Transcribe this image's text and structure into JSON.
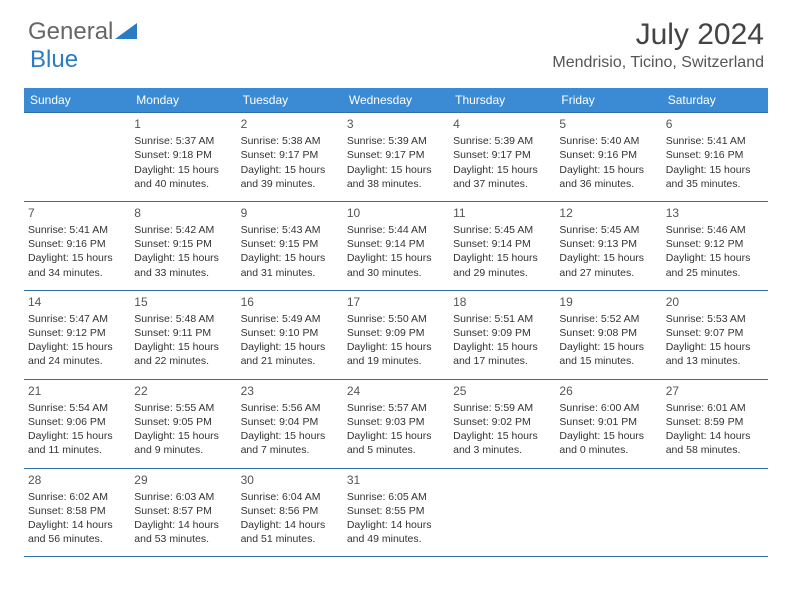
{
  "header": {
    "logo_text_1": "General",
    "logo_text_2": "Blue",
    "title": "July 2024",
    "location": "Mendrisio, Ticino, Switzerland"
  },
  "colors": {
    "header_bg": "#3b8bd4",
    "header_text": "#ffffff",
    "cell_border": "#2f6fa8",
    "logo_blue": "#2b7cc4",
    "text": "#333333"
  },
  "weekdays": [
    "Sunday",
    "Monday",
    "Tuesday",
    "Wednesday",
    "Thursday",
    "Friday",
    "Saturday"
  ],
  "start_day_index": 1,
  "days": [
    {
      "n": 1,
      "sunrise": "5:37 AM",
      "sunset": "9:18 PM",
      "daylight": "15 hours and 40 minutes."
    },
    {
      "n": 2,
      "sunrise": "5:38 AM",
      "sunset": "9:17 PM",
      "daylight": "15 hours and 39 minutes."
    },
    {
      "n": 3,
      "sunrise": "5:39 AM",
      "sunset": "9:17 PM",
      "daylight": "15 hours and 38 minutes."
    },
    {
      "n": 4,
      "sunrise": "5:39 AM",
      "sunset": "9:17 PM",
      "daylight": "15 hours and 37 minutes."
    },
    {
      "n": 5,
      "sunrise": "5:40 AM",
      "sunset": "9:16 PM",
      "daylight": "15 hours and 36 minutes."
    },
    {
      "n": 6,
      "sunrise": "5:41 AM",
      "sunset": "9:16 PM",
      "daylight": "15 hours and 35 minutes."
    },
    {
      "n": 7,
      "sunrise": "5:41 AM",
      "sunset": "9:16 PM",
      "daylight": "15 hours and 34 minutes."
    },
    {
      "n": 8,
      "sunrise": "5:42 AM",
      "sunset": "9:15 PM",
      "daylight": "15 hours and 33 minutes."
    },
    {
      "n": 9,
      "sunrise": "5:43 AM",
      "sunset": "9:15 PM",
      "daylight": "15 hours and 31 minutes."
    },
    {
      "n": 10,
      "sunrise": "5:44 AM",
      "sunset": "9:14 PM",
      "daylight": "15 hours and 30 minutes."
    },
    {
      "n": 11,
      "sunrise": "5:45 AM",
      "sunset": "9:14 PM",
      "daylight": "15 hours and 29 minutes."
    },
    {
      "n": 12,
      "sunrise": "5:45 AM",
      "sunset": "9:13 PM",
      "daylight": "15 hours and 27 minutes."
    },
    {
      "n": 13,
      "sunrise": "5:46 AM",
      "sunset": "9:12 PM",
      "daylight": "15 hours and 25 minutes."
    },
    {
      "n": 14,
      "sunrise": "5:47 AM",
      "sunset": "9:12 PM",
      "daylight": "15 hours and 24 minutes."
    },
    {
      "n": 15,
      "sunrise": "5:48 AM",
      "sunset": "9:11 PM",
      "daylight": "15 hours and 22 minutes."
    },
    {
      "n": 16,
      "sunrise": "5:49 AM",
      "sunset": "9:10 PM",
      "daylight": "15 hours and 21 minutes."
    },
    {
      "n": 17,
      "sunrise": "5:50 AM",
      "sunset": "9:09 PM",
      "daylight": "15 hours and 19 minutes."
    },
    {
      "n": 18,
      "sunrise": "5:51 AM",
      "sunset": "9:09 PM",
      "daylight": "15 hours and 17 minutes."
    },
    {
      "n": 19,
      "sunrise": "5:52 AM",
      "sunset": "9:08 PM",
      "daylight": "15 hours and 15 minutes."
    },
    {
      "n": 20,
      "sunrise": "5:53 AM",
      "sunset": "9:07 PM",
      "daylight": "15 hours and 13 minutes."
    },
    {
      "n": 21,
      "sunrise": "5:54 AM",
      "sunset": "9:06 PM",
      "daylight": "15 hours and 11 minutes."
    },
    {
      "n": 22,
      "sunrise": "5:55 AM",
      "sunset": "9:05 PM",
      "daylight": "15 hours and 9 minutes."
    },
    {
      "n": 23,
      "sunrise": "5:56 AM",
      "sunset": "9:04 PM",
      "daylight": "15 hours and 7 minutes."
    },
    {
      "n": 24,
      "sunrise": "5:57 AM",
      "sunset": "9:03 PM",
      "daylight": "15 hours and 5 minutes."
    },
    {
      "n": 25,
      "sunrise": "5:59 AM",
      "sunset": "9:02 PM",
      "daylight": "15 hours and 3 minutes."
    },
    {
      "n": 26,
      "sunrise": "6:00 AM",
      "sunset": "9:01 PM",
      "daylight": "15 hours and 0 minutes."
    },
    {
      "n": 27,
      "sunrise": "6:01 AM",
      "sunset": "8:59 PM",
      "daylight": "14 hours and 58 minutes."
    },
    {
      "n": 28,
      "sunrise": "6:02 AM",
      "sunset": "8:58 PM",
      "daylight": "14 hours and 56 minutes."
    },
    {
      "n": 29,
      "sunrise": "6:03 AM",
      "sunset": "8:57 PM",
      "daylight": "14 hours and 53 minutes."
    },
    {
      "n": 30,
      "sunrise": "6:04 AM",
      "sunset": "8:56 PM",
      "daylight": "14 hours and 51 minutes."
    },
    {
      "n": 31,
      "sunrise": "6:05 AM",
      "sunset": "8:55 PM",
      "daylight": "14 hours and 49 minutes."
    }
  ],
  "labels": {
    "sunrise": "Sunrise:",
    "sunset": "Sunset:",
    "daylight": "Daylight:"
  }
}
